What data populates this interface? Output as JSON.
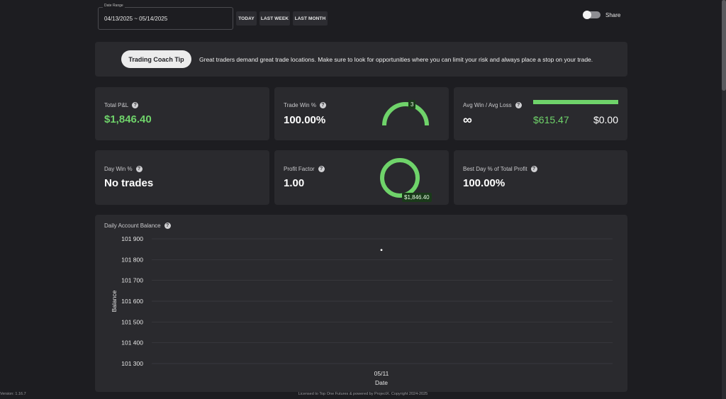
{
  "header": {
    "date_range_label": "Date Range",
    "date_range_value": "04/13/2025 ~ 05/14/2025",
    "quick_buttons": [
      "TODAY",
      "LAST WEEK",
      "LAST MONTH"
    ],
    "share_label": "Share"
  },
  "tip": {
    "pill": "Trading Coach Tip",
    "text": "Great traders demand great trade locations. Make sure to look for opportunities where you can limit your risk and always place a stop on your trade."
  },
  "stats": {
    "total_pnl": {
      "title": "Total P&L",
      "value": "$1,846.40"
    },
    "trade_win": {
      "title": "Trade Win %",
      "value": "100.00%",
      "badge": "3",
      "win_fraction": 1.0
    },
    "avg_win_loss": {
      "title": "Avg Win / Avg Loss",
      "value": "∞",
      "avg_win": "$615.47",
      "avg_loss": "$0.00",
      "win_share": 1.0
    },
    "day_win": {
      "title": "Day Win %",
      "value": "No trades"
    },
    "profit_factor": {
      "title": "Profit Factor",
      "value": "1.00",
      "badge": "$1,846.40",
      "gross_profit_share": 1.0
    },
    "best_day": {
      "title": "Best Day % of Total Profit",
      "value": "100.00%"
    }
  },
  "colors": {
    "positive": "#6fd36a",
    "card": "#2a2a2e",
    "background": "#1d1d21"
  },
  "icons": {
    "help": "?"
  },
  "footer": {
    "version": "Version: 1.16.7",
    "license": "Licensed to Top One Futures & powered by ProjectX. Copyright 2024-2025"
  },
  "chart_data": {
    "type": "line",
    "title": "Daily Account Balance",
    "xlabel": "Date",
    "ylabel": "Balance",
    "categories": [
      "05/11"
    ],
    "y_ticks": [
      "101 900",
      "101 800",
      "101 700",
      "101 600",
      "101 500",
      "101 400",
      "101 300"
    ],
    "ylim": [
      101300,
      101900
    ],
    "grid": true,
    "series": [
      {
        "values": [
          101846.4
        ]
      }
    ]
  }
}
